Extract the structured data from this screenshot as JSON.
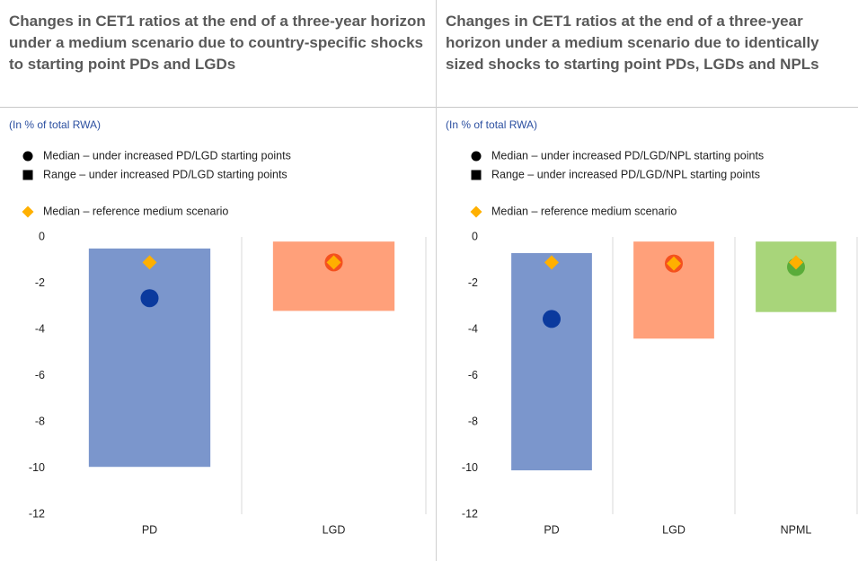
{
  "chart_data": [
    {
      "type": "range",
      "title": "Changes in CET1 ratios at the end of a three-year horizon under a medium scenario due to country-specific shocks to starting point PDs and LGDs",
      "subtitle": "(In % of total RWA)",
      "categories": [
        "PD",
        "LGD"
      ],
      "ylim": [
        -12,
        0
      ],
      "yticks": [
        0,
        -2,
        -4,
        -6,
        -8,
        -10,
        -12
      ],
      "grid": false,
      "series": [
        {
          "name": "Median – under increased PD/LGD starting points",
          "marker": "circle",
          "color": "#000000",
          "colors": [
            "#0b3a9e",
            "#f4511e"
          ],
          "values": [
            -2.65,
            -1.1
          ]
        },
        {
          "name": "Range – under increased PD/LGD starting points",
          "marker": "range",
          "color": "#000000",
          "colors": [
            "#7b96cc",
            "#ffa07a"
          ],
          "low": [
            -9.95,
            -3.2
          ],
          "high": [
            -0.5,
            -0.2
          ]
        },
        {
          "name": "Median – reference medium scenario",
          "marker": "diamond",
          "color": "#ffb000",
          "values": [
            -1.1,
            -1.1
          ]
        }
      ]
    },
    {
      "type": "range",
      "title": "Changes in CET1 ratios at the end of a three-year horizon under a medium scenario due to identically sized shocks to starting point PDs, LGDs and NPLs",
      "subtitle": "(In % of total RWA)",
      "categories": [
        "PD",
        "LGD",
        "NPML"
      ],
      "ylim": [
        -12,
        0
      ],
      "yticks": [
        0,
        -2,
        -4,
        -6,
        -8,
        -10,
        -12
      ],
      "grid": false,
      "series": [
        {
          "name": "Median – under increased PD/LGD/NPL starting points",
          "marker": "circle",
          "color": "#000000",
          "colors": [
            "#0b3a9e",
            "#f4511e",
            "#5aac3a"
          ],
          "values": [
            -3.55,
            -1.15,
            -1.3
          ]
        },
        {
          "name": "Range – under increased PD/LGD/NPL starting points",
          "marker": "range",
          "color": "#000000",
          "colors": [
            "#7b96cc",
            "#ffa07a",
            "#a8d57a"
          ],
          "low": [
            -10.1,
            -4.4,
            -3.25
          ],
          "high": [
            -0.7,
            -0.2,
            -0.2
          ]
        },
        {
          "name": "Median – reference medium scenario",
          "marker": "diamond",
          "color": "#ffb000",
          "values": [
            -1.1,
            -1.15,
            -1.1
          ]
        }
      ]
    }
  ]
}
